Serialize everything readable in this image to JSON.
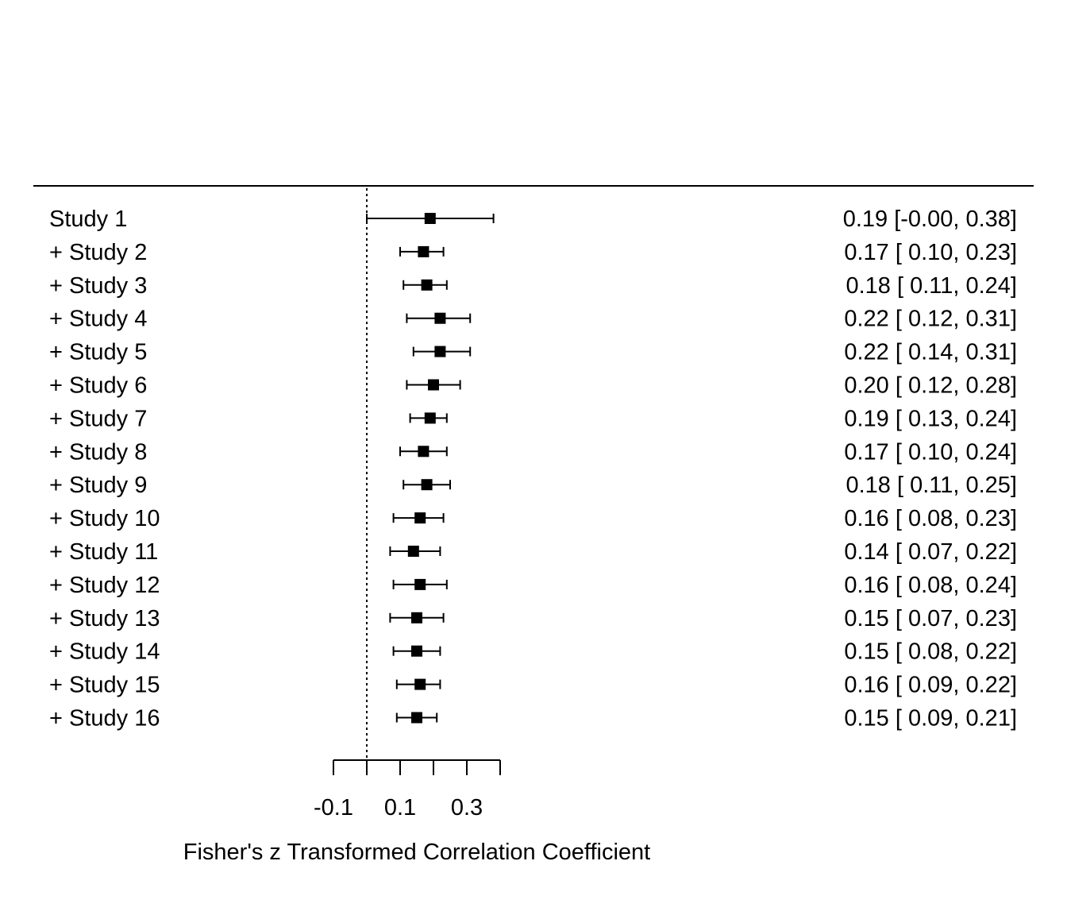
{
  "chart_data": {
    "type": "forest",
    "xlabel": "Fisher's z Transformed Correlation Coefficient",
    "xlim": [
      -0.1,
      0.4
    ],
    "xticks": [
      -0.1,
      0.0,
      0.1,
      0.2,
      0.3,
      0.4
    ],
    "xtick_labels": [
      "-0.1",
      "",
      "0.1",
      "",
      "0.3",
      ""
    ],
    "reference_line": 0,
    "rows": [
      {
        "label": "Study 1",
        "est": 0.19,
        "lo": -0.0,
        "hi": 0.38,
        "text": "0.19 [-0.00, 0.38]"
      },
      {
        "label": "+ Study 2",
        "est": 0.17,
        "lo": 0.1,
        "hi": 0.23,
        "text": "0.17 [ 0.10, 0.23]"
      },
      {
        "label": "+ Study 3",
        "est": 0.18,
        "lo": 0.11,
        "hi": 0.24,
        "text": "0.18 [ 0.11, 0.24]"
      },
      {
        "label": "+ Study 4",
        "est": 0.22,
        "lo": 0.12,
        "hi": 0.31,
        "text": "0.22 [ 0.12, 0.31]"
      },
      {
        "label": "+ Study 5",
        "est": 0.22,
        "lo": 0.14,
        "hi": 0.31,
        "text": "0.22 [ 0.14, 0.31]"
      },
      {
        "label": "+ Study 6",
        "est": 0.2,
        "lo": 0.12,
        "hi": 0.28,
        "text": "0.20 [ 0.12, 0.28]"
      },
      {
        "label": "+ Study 7",
        "est": 0.19,
        "lo": 0.13,
        "hi": 0.24,
        "text": "0.19 [ 0.13, 0.24]"
      },
      {
        "label": "+ Study 8",
        "est": 0.17,
        "lo": 0.1,
        "hi": 0.24,
        "text": "0.17 [ 0.10, 0.24]"
      },
      {
        "label": "+ Study 9",
        "est": 0.18,
        "lo": 0.11,
        "hi": 0.25,
        "text": "0.18 [ 0.11, 0.25]"
      },
      {
        "label": "+ Study 10",
        "est": 0.16,
        "lo": 0.08,
        "hi": 0.23,
        "text": "0.16 [ 0.08, 0.23]"
      },
      {
        "label": "+ Study 11",
        "est": 0.14,
        "lo": 0.07,
        "hi": 0.22,
        "text": "0.14 [ 0.07, 0.22]"
      },
      {
        "label": "+ Study 12",
        "est": 0.16,
        "lo": 0.08,
        "hi": 0.24,
        "text": "0.16 [ 0.08, 0.24]"
      },
      {
        "label": "+ Study 13",
        "est": 0.15,
        "lo": 0.07,
        "hi": 0.23,
        "text": "0.15 [ 0.07, 0.23]"
      },
      {
        "label": "+ Study 14",
        "est": 0.15,
        "lo": 0.08,
        "hi": 0.22,
        "text": "0.15 [ 0.08, 0.22]"
      },
      {
        "label": "+ Study 15",
        "est": 0.16,
        "lo": 0.09,
        "hi": 0.22,
        "text": "0.16 [ 0.09, 0.22]"
      },
      {
        "label": "+ Study 16",
        "est": 0.15,
        "lo": 0.09,
        "hi": 0.21,
        "text": "0.15 [ 0.09, 0.21]"
      }
    ]
  }
}
